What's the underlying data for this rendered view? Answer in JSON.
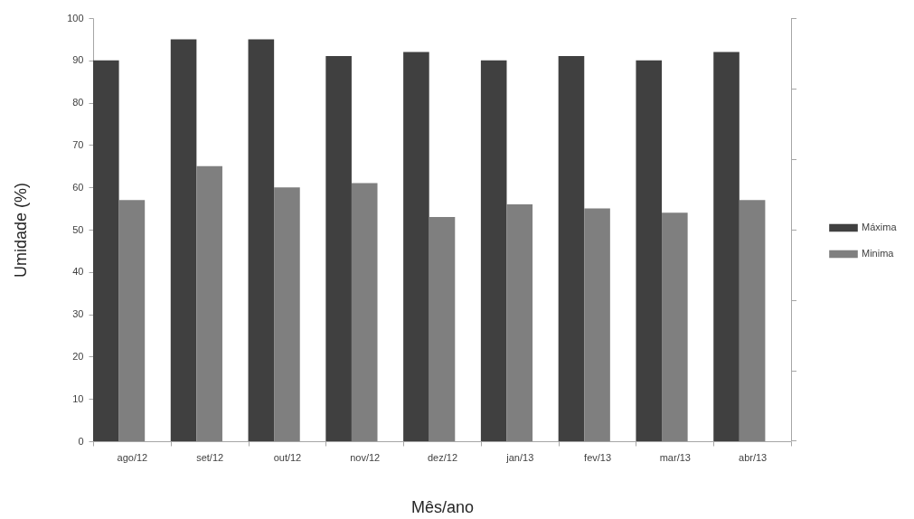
{
  "chart_data": {
    "type": "bar",
    "xlabel": "Mês/ano",
    "ylabel": "Umidade (%)",
    "categories": [
      "ago/12",
      "set/12",
      "out/12",
      "nov/12",
      "dez/12",
      "jan/13",
      "fev/13",
      "mar/13",
      "abr/13"
    ],
    "series": [
      {
        "name": "Máxima",
        "color": "#404040",
        "values": [
          90,
          95,
          95,
          91,
          92,
          90,
          91,
          90,
          92
        ]
      },
      {
        "name": "Minima",
        "color": "#7f7f7f",
        "values": [
          57,
          65,
          60,
          61,
          53,
          56,
          55,
          54,
          57
        ]
      }
    ],
    "ylim": [
      0,
      100
    ],
    "yticks": [
      0,
      10,
      20,
      30,
      40,
      50,
      60,
      70,
      80,
      90,
      100
    ],
    "legend": "right",
    "grid": false
  }
}
